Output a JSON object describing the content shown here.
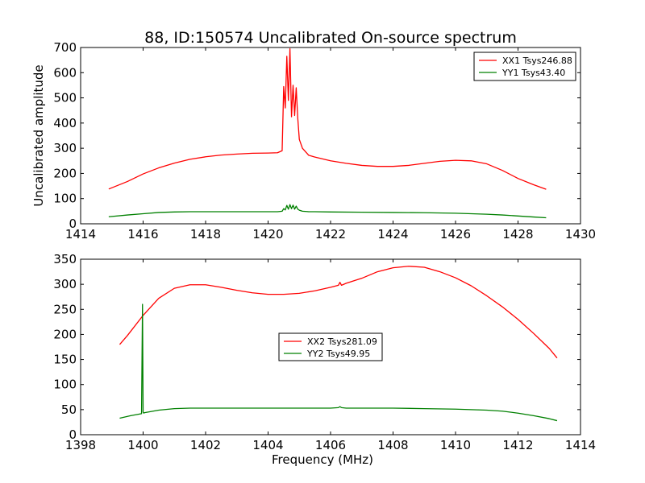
{
  "figure_title": "88, ID:150574 Uncalibrated On-source spectrum",
  "colors": {
    "red": "#ff0000",
    "green": "#008000",
    "axis": "#000000"
  },
  "chart_data": [
    {
      "type": "line",
      "title": "88, ID:150574 Uncalibrated On-source spectrum",
      "xlabel": "",
      "ylabel": "Uncalibrated amplitude",
      "xlim": [
        1414,
        1430
      ],
      "ylim": [
        0,
        700
      ],
      "xticks": [
        1414,
        1416,
        1418,
        1420,
        1422,
        1424,
        1426,
        1428,
        1430
      ],
      "yticks": [
        0,
        100,
        200,
        300,
        400,
        500,
        600,
        700
      ],
      "legend_position": "top-right",
      "series": [
        {
          "name": "XX1 Tsys246.88",
          "color": "#ff0000",
          "x": [
            1414.9,
            1415.5,
            1416.0,
            1416.5,
            1417.0,
            1417.5,
            1418.0,
            1418.5,
            1419.0,
            1419.5,
            1420.0,
            1420.3,
            1420.45,
            1420.5,
            1420.55,
            1420.6,
            1420.65,
            1420.7,
            1420.75,
            1420.8,
            1420.85,
            1420.9,
            1420.95,
            1421.0,
            1421.1,
            1421.3,
            1421.5,
            1422.0,
            1422.5,
            1423.0,
            1423.5,
            1424.0,
            1424.5,
            1425.0,
            1425.5,
            1426.0,
            1426.5,
            1427.0,
            1427.5,
            1428.0,
            1428.5,
            1428.9
          ],
          "y": [
            138,
            168,
            198,
            222,
            241,
            256,
            266,
            273,
            277,
            280,
            281,
            282,
            290,
            545,
            460,
            665,
            490,
            695,
            425,
            550,
            430,
            540,
            420,
            335,
            300,
            272,
            265,
            250,
            240,
            232,
            228,
            228,
            232,
            240,
            248,
            252,
            250,
            238,
            212,
            180,
            155,
            137
          ]
        },
        {
          "name": "YY1 Tsys43.40",
          "color": "#008000",
          "x": [
            1414.9,
            1415.5,
            1416.0,
            1416.5,
            1417.0,
            1417.5,
            1418.0,
            1418.5,
            1419.0,
            1419.5,
            1420.0,
            1420.3,
            1420.45,
            1420.5,
            1420.55,
            1420.6,
            1420.65,
            1420.7,
            1420.75,
            1420.8,
            1420.85,
            1420.9,
            1420.95,
            1421.0,
            1421.1,
            1421.3,
            1421.5,
            1422.0,
            1423.0,
            1424.0,
            1425.0,
            1426.0,
            1427.0,
            1427.5,
            1428.0,
            1428.5,
            1428.9
          ],
          "y": [
            28,
            35,
            40,
            45,
            47,
            48,
            48,
            48,
            48,
            48,
            48,
            48,
            50,
            60,
            55,
            73,
            58,
            76,
            60,
            74,
            58,
            70,
            58,
            54,
            50,
            48,
            48,
            47,
            46,
            45,
            44,
            42,
            38,
            35,
            31,
            27,
            24
          ]
        }
      ]
    },
    {
      "type": "line",
      "title": "",
      "xlabel": "Frequency (MHz)",
      "ylabel": "",
      "xlim": [
        1398,
        1414
      ],
      "ylim": [
        0,
        350
      ],
      "xticks": [
        1398,
        1400,
        1402,
        1404,
        1406,
        1408,
        1410,
        1412,
        1414
      ],
      "yticks": [
        0,
        50,
        100,
        150,
        200,
        250,
        300,
        350
      ],
      "legend_position": "center",
      "series": [
        {
          "name": "XX2 Tsys281.09",
          "color": "#ff0000",
          "x": [
            1399.25,
            1399.5,
            1400.0,
            1400.5,
            1401.0,
            1401.5,
            1402.0,
            1402.5,
            1403.0,
            1403.5,
            1404.0,
            1404.5,
            1405.0,
            1405.5,
            1406.0,
            1406.25,
            1406.3,
            1406.35,
            1406.5,
            1407.0,
            1407.5,
            1408.0,
            1408.5,
            1409.0,
            1409.5,
            1410.0,
            1410.5,
            1411.0,
            1411.5,
            1412.0,
            1412.5,
            1413.0,
            1413.25
          ],
          "y": [
            180,
            198,
            238,
            272,
            292,
            299,
            299,
            294,
            288,
            283,
            280,
            280,
            282,
            287,
            294,
            298,
            304,
            298,
            302,
            312,
            325,
            333,
            336,
            334,
            325,
            313,
            297,
            277,
            255,
            230,
            202,
            172,
            153
          ]
        },
        {
          "name": "YY2 Tsys49.95",
          "color": "#008000",
          "x": [
            1399.25,
            1399.6,
            1399.95,
            1399.98,
            1400.0,
            1400.02,
            1400.05,
            1400.5,
            1401.0,
            1401.5,
            1402.0,
            1403.0,
            1404.0,
            1405.0,
            1406.0,
            1406.25,
            1406.3,
            1406.35,
            1406.5,
            1407.0,
            1408.0,
            1409.0,
            1410.0,
            1411.0,
            1411.5,
            1412.0,
            1412.5,
            1413.0,
            1413.25
          ],
          "y": [
            33,
            38,
            42,
            260,
            45,
            43,
            44,
            49,
            52,
            53,
            53,
            53,
            53,
            53,
            53,
            54,
            56,
            54,
            53,
            53,
            53,
            52,
            51,
            49,
            47,
            43,
            38,
            32,
            28
          ]
        }
      ]
    }
  ]
}
